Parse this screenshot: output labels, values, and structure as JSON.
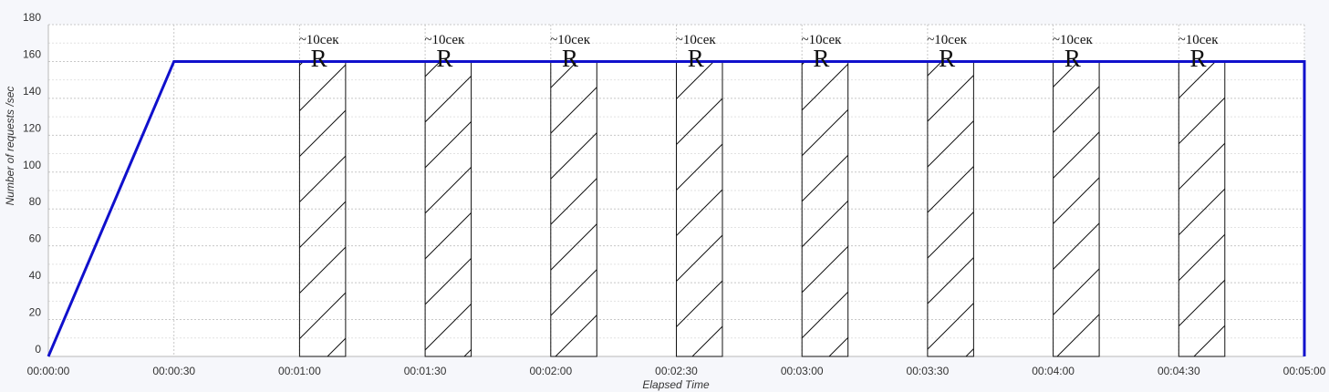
{
  "chart_data": {
    "type": "line",
    "xlabel": "Elapsed Time",
    "ylabel": "Number of requests /sec",
    "xlim": [
      "00:00:00",
      "00:05:00"
    ],
    "ylim": [
      0,
      180
    ],
    "x_ticks": [
      "00:00:00",
      "00:00:30",
      "00:01:00",
      "00:01:30",
      "00:02:00",
      "00:02:30",
      "00:03:00",
      "00:03:30",
      "00:04:00",
      "00:04:30",
      "00:05:00"
    ],
    "y_ticks": [
      0,
      20,
      40,
      60,
      80,
      100,
      120,
      140,
      160,
      180
    ],
    "grid": true,
    "legend": "none",
    "series": [
      {
        "color": "#1010cc",
        "x": [
          "00:00:00",
          "00:00:30",
          "00:05:00",
          "00:05:00"
        ],
        "y": [
          0,
          160,
          160,
          0
        ]
      }
    ],
    "annotations": [
      {
        "start": "00:01:00",
        "end": "00:01:11",
        "duration_label": "~10сек",
        "marker": "R"
      },
      {
        "start": "00:01:30",
        "end": "00:01:41",
        "duration_label": "~10сек",
        "marker": "R"
      },
      {
        "start": "00:02:00",
        "end": "00:02:11",
        "duration_label": "~10сек",
        "marker": "R"
      },
      {
        "start": "00:02:30",
        "end": "00:02:41",
        "duration_label": "~10сек",
        "marker": "R"
      },
      {
        "start": "00:03:00",
        "end": "00:03:11",
        "duration_label": "~10сек",
        "marker": "R"
      },
      {
        "start": "00:03:30",
        "end": "00:03:41",
        "duration_label": "~10сек",
        "marker": "R"
      },
      {
        "start": "00:04:00",
        "end": "00:04:11",
        "duration_label": "~10сек",
        "marker": "R"
      },
      {
        "start": "00:04:30",
        "end": "00:04:41",
        "duration_label": "~10сек",
        "marker": "R"
      }
    ]
  }
}
